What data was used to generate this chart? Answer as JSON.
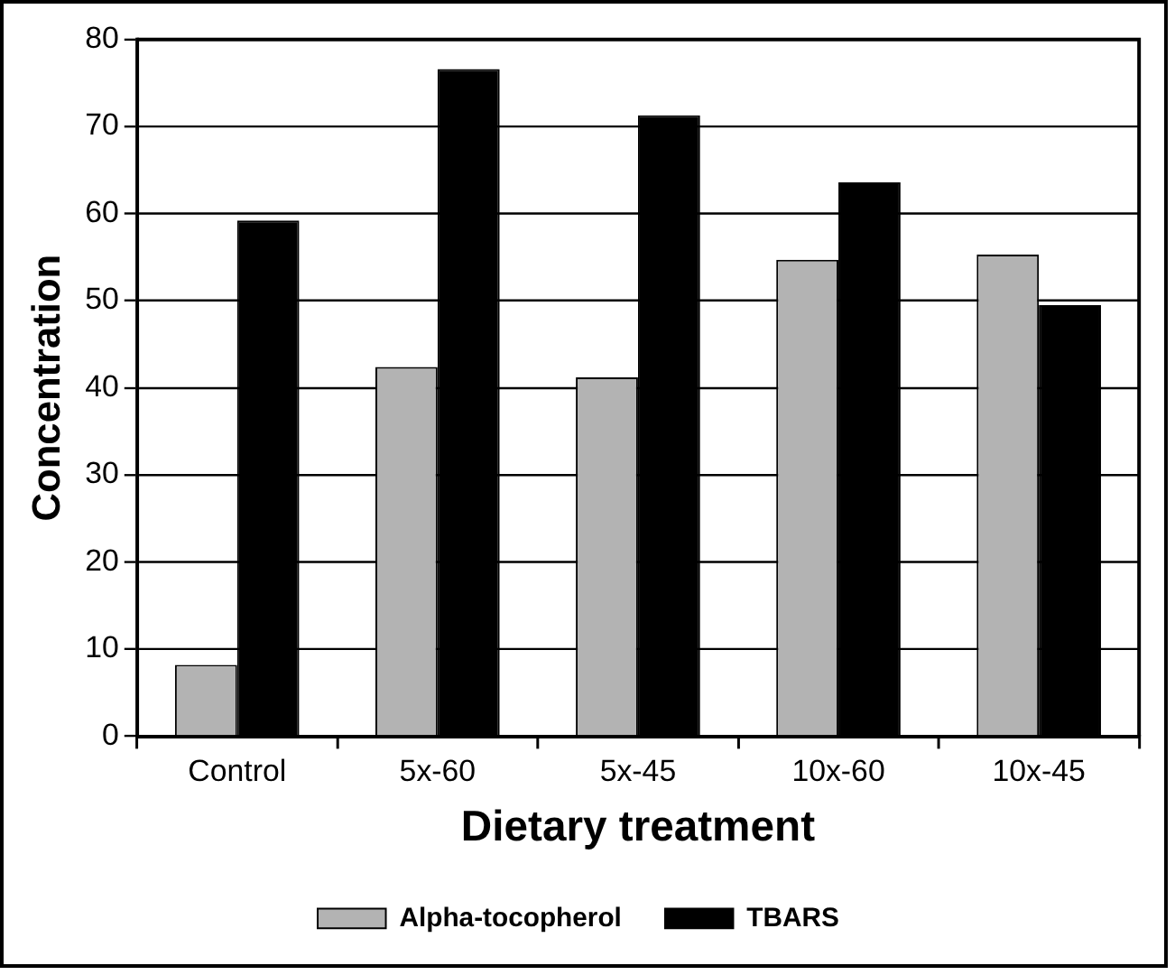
{
  "chart_data": {
    "type": "bar",
    "xlabel": "Dietary treatment",
    "ylabel": "Concentration",
    "categories": [
      "Control",
      "5x-60",
      "5x-45",
      "10x-60",
      "10x-45"
    ],
    "series": [
      {
        "name": "Alpha-tocopherol",
        "color": "#b3b3b3",
        "values": [
          8.2,
          42.4,
          41.2,
          54.7,
          55.3
        ]
      },
      {
        "name": "TBARS",
        "color": "#000000",
        "values": [
          59.2,
          76.6,
          71.3,
          63.6,
          49.5
        ]
      }
    ],
    "ylim": [
      0,
      80
    ],
    "yticks": [
      0,
      10,
      20,
      30,
      40,
      50,
      60,
      70,
      80
    ],
    "grid": "y",
    "legend": "bottom"
  }
}
